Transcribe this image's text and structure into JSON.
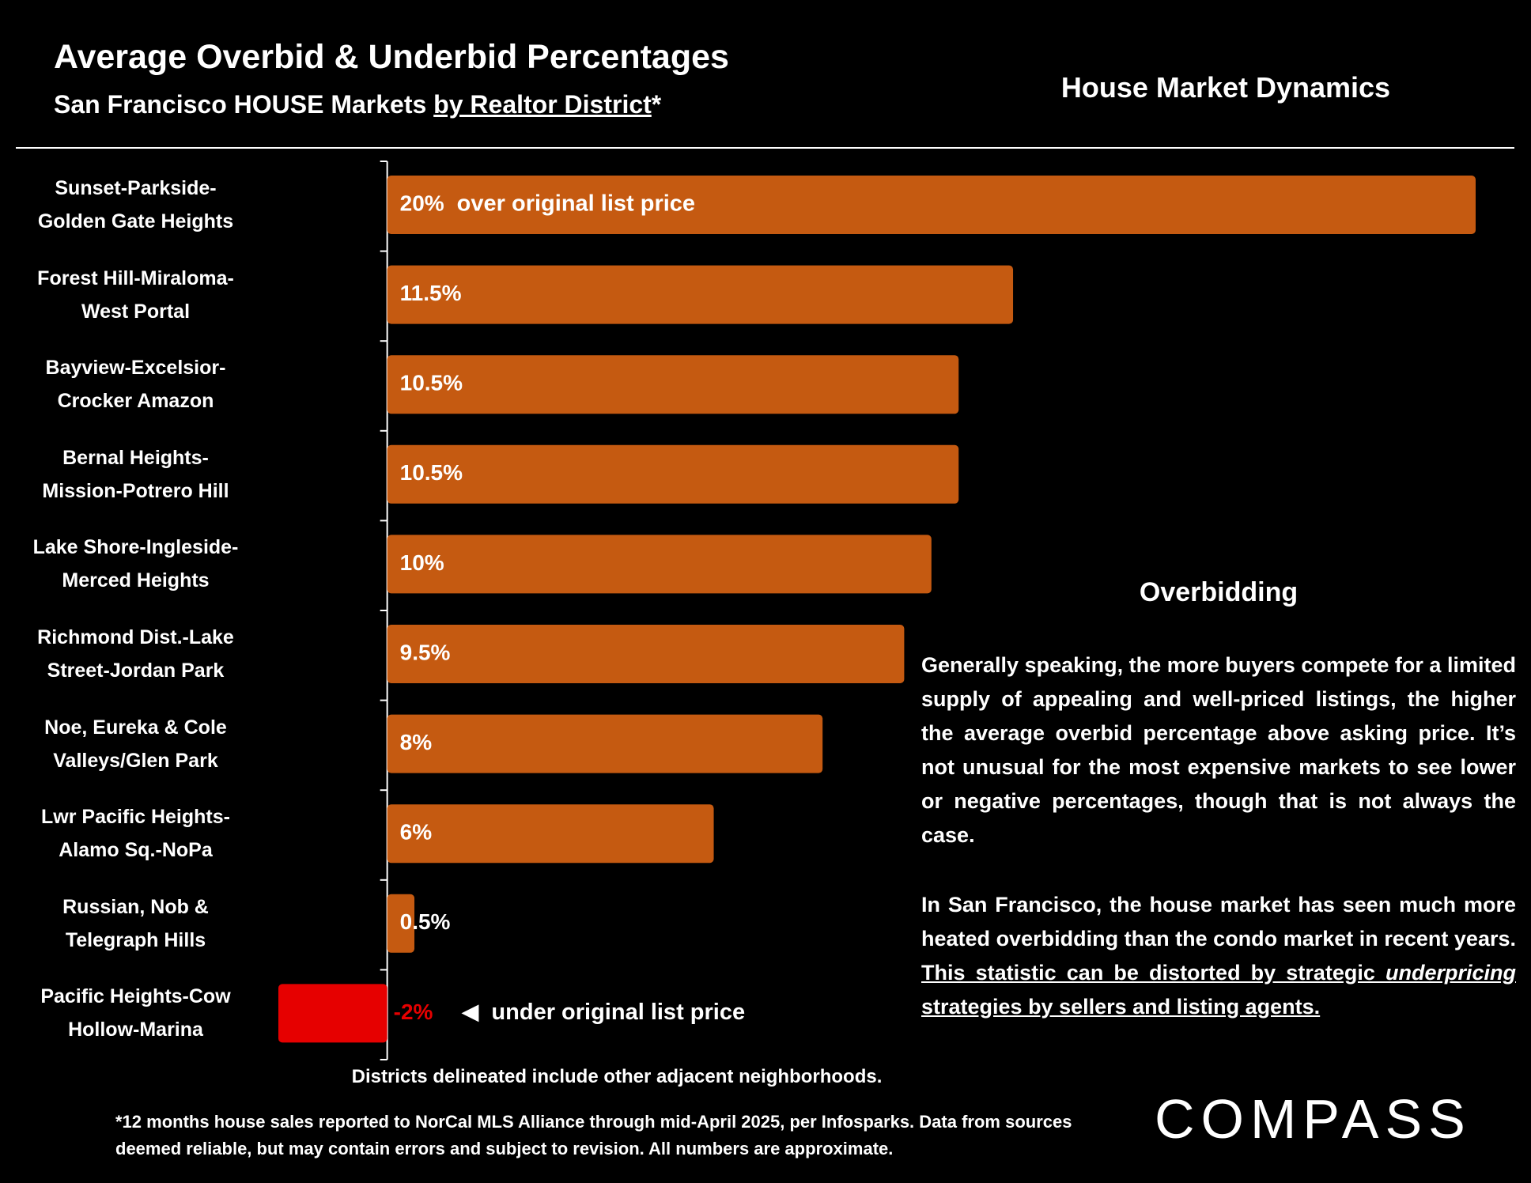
{
  "chart_data": {
    "type": "bar",
    "orientation": "horizontal",
    "title": "Average Overbid & Underbid Percentages",
    "subtitle": "San Francisco HOUSE Markets",
    "subtitle_underlined": "by Realtor District",
    "subtitle_mark": "*",
    "header": "House Market Dynamics",
    "categories": [
      "Sunset-Parkside-\nGolden Gate Heights",
      "Forest Hill-Miraloma-\nWest Portal",
      "Bayview-Excelsior-\nCrocker Amazon",
      "Bernal Heights-\nMission-Potrero Hill",
      "Lake Shore-Ingleside-\nMerced Heights",
      "Richmond Dist.-Lake\nStreet-Jordan Park",
      "Noe, Eureka & Cole\nValleys/Glen Park",
      "Lwr Pacific Heights-\nAlamo Sq.-NoPa",
      "Russian, Nob &\nTelegraph Hills",
      "Pacific Heights-Cow\nHollow-Marina"
    ],
    "values": [
      20,
      11.5,
      10.5,
      10.5,
      10,
      9.5,
      8,
      6,
      0.5,
      -2
    ],
    "value_labels": [
      "20%",
      "11.5%",
      "10.5%",
      "10.5%",
      "10%",
      "9.5%",
      "8%",
      "6%",
      "0.5%",
      "-2%"
    ],
    "color": "#c55a11",
    "negative_color": "#e60000",
    "xlim": [
      -2,
      20
    ],
    "over_label": "over original list price",
    "under_label": "under original list price",
    "note": "Districts delineated include other adjacent neighborhoods."
  },
  "side_text": {
    "heading": "Overbidding",
    "paragraph_1": "Generally speaking, the more buyers compete for a limited supply of appealing and well-priced listings, the higher the average overbid percentage above asking price. It’s not unusual for the most expensive markets to see lower or negative percentages, though that is not always the case.",
    "paragraph_2": "In San Francisco, the house market has seen much more heated overbidding than the condo market in recent years. ",
    "paragraph_2_underlined": "This statistic can be distorted by strategic ",
    "paragraph_2_italic": "underpricing",
    "paragraph_2_end": " strategies by sellers and listing agents."
  },
  "footer": {
    "footnote": "*12 months house sales reported to NorCal MLS Alliance through mid-April 2025, per Infosparks. Data from sources deemed reliable, but may contain errors and subject to revision. All numbers are approximate.",
    "logo": "COMPASS"
  }
}
